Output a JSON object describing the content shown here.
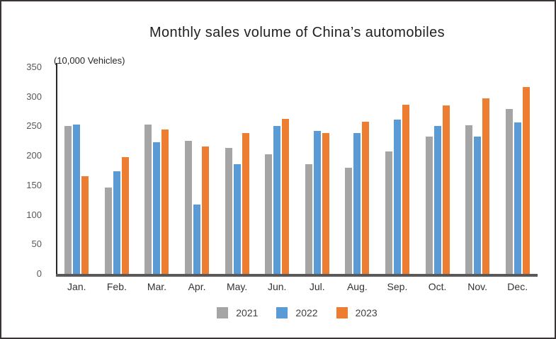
{
  "title": "Monthly sales volume of China’s automobiles",
  "axis_unit_label": "(10,000 Vehicles)",
  "legend": {
    "items": [
      {
        "label": "2021",
        "color": "#A5A5A5"
      },
      {
        "label": "2022",
        "color": "#5B9BD5"
      },
      {
        "label": "2023",
        "color": "#ED7D31"
      }
    ]
  },
  "colors": {
    "series_2021": "#A5A5A5",
    "series_2022": "#5B9BD5",
    "series_2023": "#ED7D31",
    "axis_line": "#595959",
    "frame_border": "#3a3434"
  },
  "chart_data": {
    "type": "bar",
    "title": "Monthly sales volume of China’s automobiles",
    "xlabel": "",
    "ylabel": "(10,000 Vehicles)",
    "categories": [
      "Jan.",
      "Feb.",
      "Mar.",
      "Apr.",
      "May.",
      "Jun.",
      "Jul.",
      "Aug.",
      "Sep.",
      "Oct.",
      "Nov.",
      "Dec."
    ],
    "series": [
      {
        "name": "2021",
        "color": "#A5A5A5",
        "values": [
          250,
          146,
          253,
          225,
          213,
          202,
          186,
          180,
          207,
          233,
          252,
          279
        ]
      },
      {
        "name": "2022",
        "color": "#5B9BD5",
        "values": [
          253,
          174,
          223,
          118,
          186,
          250,
          242,
          238,
          261,
          251,
          233,
          256
        ]
      },
      {
        "name": "2023",
        "color": "#ED7D31",
        "values": [
          165,
          198,
          245,
          216,
          238,
          262,
          239,
          258,
          286,
          285,
          297,
          316
        ]
      }
    ],
    "ylim": [
      0,
      350
    ],
    "yticks": [
      0,
      50,
      100,
      150,
      200,
      250,
      300,
      350
    ],
    "grid": false,
    "legend_position": "bottom"
  }
}
